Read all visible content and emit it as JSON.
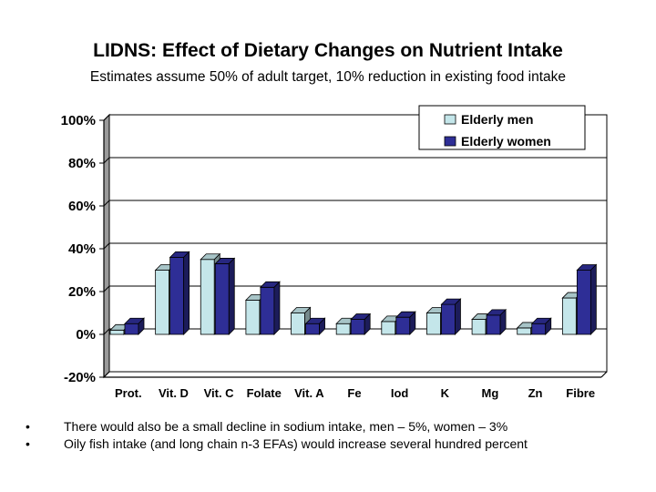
{
  "slide": {
    "title": "LIDNS: Effect of Dietary Changes on Nutrient Intake",
    "subtitle": "Estimates assume 50% of adult target, 10% reduction in existing food intake"
  },
  "bullets": [
    "There would also be a small decline in sodium intake, men – 5%, women – 3%",
    "Oily fish intake (and long chain n-3 EFAs) would increase several hundred percent"
  ],
  "chart_data": {
    "type": "bar",
    "categories": [
      "Prot.",
      "Vit. D",
      "Vit. C",
      "Folate",
      "Vit. A",
      "Fe",
      "Iod",
      "K",
      "Mg",
      "Zn",
      "Fibre"
    ],
    "series": [
      {
        "name": "Elderly men",
        "color": "#c4e6ea",
        "values": [
          2,
          30,
          35,
          16,
          10,
          5,
          6,
          10,
          7,
          3,
          17
        ]
      },
      {
        "name": "Elderly women",
        "color": "#2e2e96",
        "values": [
          5,
          36,
          33,
          22,
          5,
          7,
          8,
          14,
          9,
          5,
          30
        ]
      }
    ],
    "yticks": [
      "-20%",
      "0%",
      "20%",
      "40%",
      "60%",
      "80%",
      "100%"
    ],
    "ylim": [
      -20,
      100
    ],
    "grid": true,
    "legend": "top-right"
  }
}
